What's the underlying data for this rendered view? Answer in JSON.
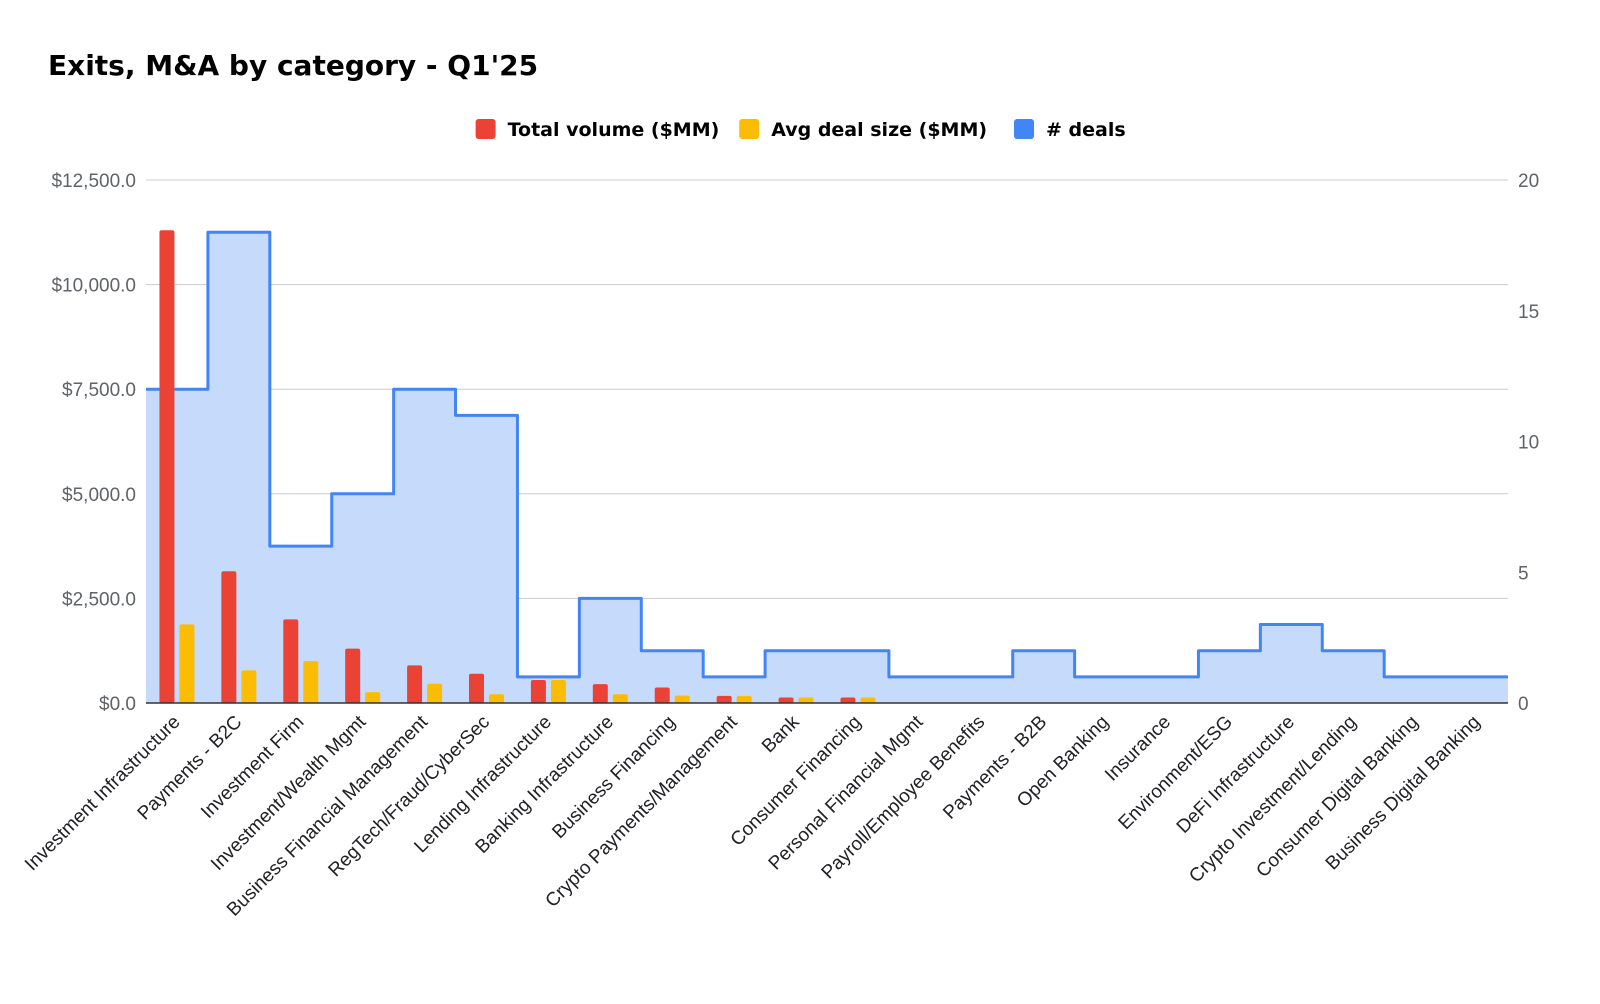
{
  "chart_data": {
    "type": "bar",
    "title": "Exits, M&A by category - Q1'25",
    "categories": [
      "Investment Infrastructure",
      "Payments - B2C",
      "Investment Firm",
      "Investment/Wealth Mgmt",
      "Business Financial Management",
      "RegTech/Fraud/CyberSec",
      "Lending Infrastructure",
      "Banking Infrastructure",
      "Business Financing",
      "Crypto Payments/Management",
      "Bank",
      "Consumer Financing",
      "Personal Financial Mgmt",
      "Payroll/Employee Benefits",
      "Payments - B2B",
      "Open Banking",
      "Insurance",
      "Environment/ESG",
      "DeFi Infrastructure",
      "Crypto Investment/Lending",
      "Consumer Digital Banking",
      "Business Digital Banking"
    ],
    "series": [
      {
        "name": "Total volume ($MM)",
        "color": "#ea4335",
        "axis": "left",
        "kind": "bar",
        "values": [
          11300,
          3150,
          2000,
          1300,
          900,
          700,
          550,
          450,
          370,
          170,
          130,
          130,
          0,
          0,
          0,
          0,
          0,
          0,
          0,
          0,
          0,
          0
        ]
      },
      {
        "name": "Avg deal size ($MM)",
        "color": "#fbbc04",
        "axis": "left",
        "kind": "bar",
        "values": [
          1880,
          780,
          1000,
          260,
          460,
          210,
          550,
          210,
          180,
          170,
          130,
          130,
          0,
          0,
          0,
          0,
          0,
          0,
          0,
          0,
          0,
          0
        ]
      },
      {
        "name": "# deals",
        "color": "#4285f4",
        "fill": "#c6dafc",
        "axis": "right",
        "kind": "stepped-area",
        "values": [
          12,
          18,
          6,
          8,
          12,
          11,
          1,
          4,
          2,
          1,
          2,
          2,
          1,
          1,
          2,
          1,
          1,
          2,
          3,
          2,
          1,
          1
        ]
      }
    ],
    "y_left": {
      "ylim": [
        0,
        12500
      ],
      "ticks": [
        0,
        2500,
        5000,
        7500,
        10000,
        12500
      ],
      "tick_labels": [
        "$0.0",
        "$2,500.0",
        "$5,000.0",
        "$7,500.0",
        "$10,000.0",
        "$12,500.0"
      ]
    },
    "y_right": {
      "ylim": [
        0,
        20
      ],
      "ticks": [
        0,
        5,
        10,
        15,
        20
      ],
      "tick_labels": [
        "0",
        "5",
        "10",
        "15",
        "20"
      ]
    },
    "xlabel": "",
    "ylabel": "",
    "grid": true,
    "legend_position": "top-center"
  }
}
